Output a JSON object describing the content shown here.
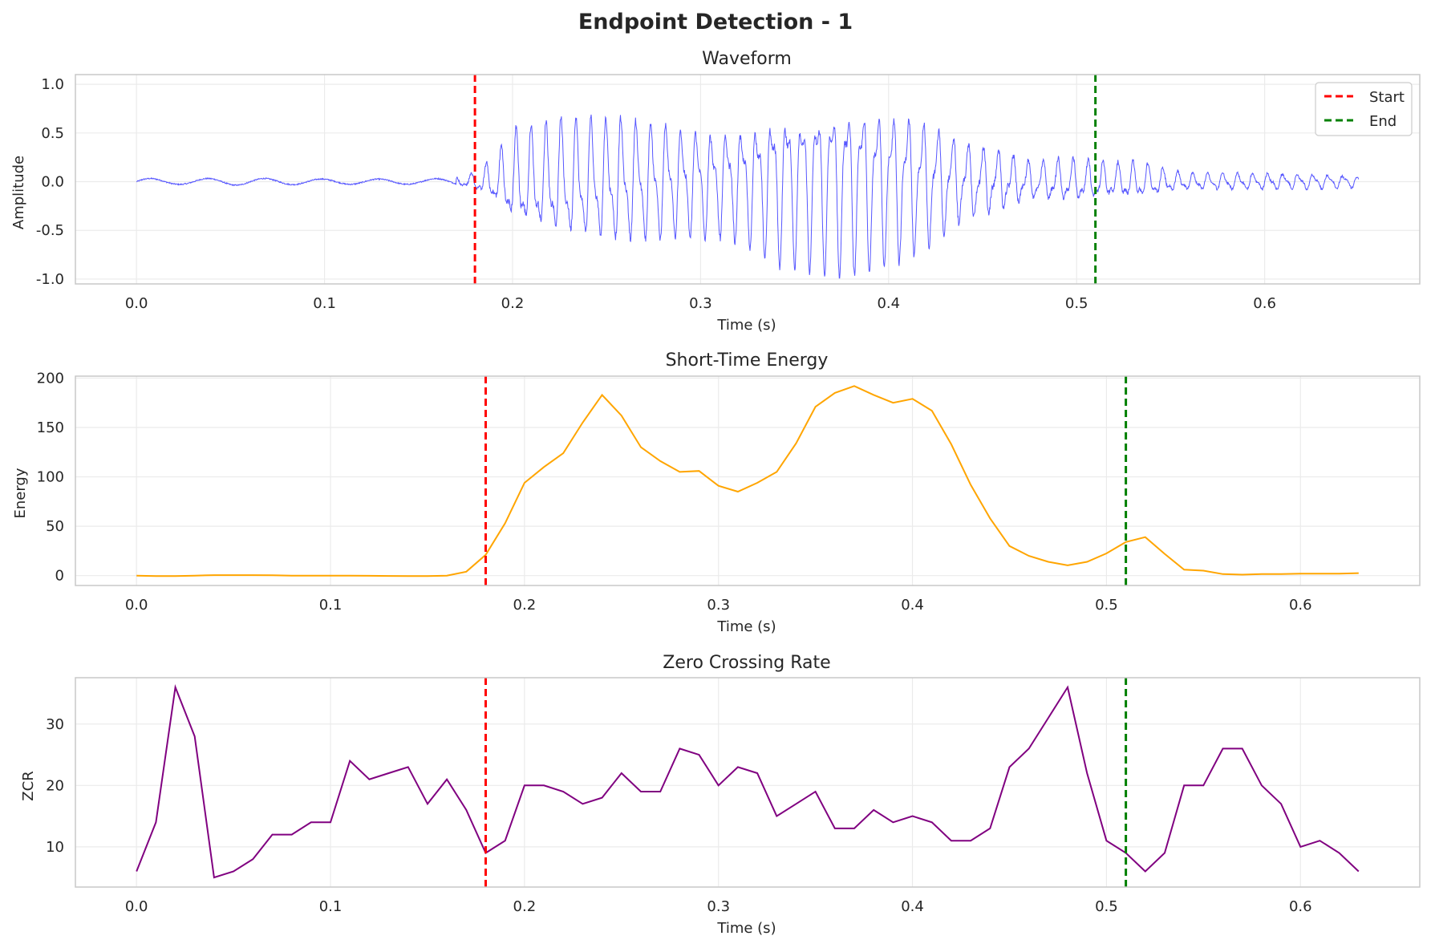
{
  "figure": {
    "title": "Endpoint Detection - 1"
  },
  "colors": {
    "start": "#ff0000",
    "end": "#008000",
    "waveform": "#4545ff",
    "energy": "#ffa500",
    "zcr": "#800080"
  },
  "legend": {
    "start_label": "Start",
    "end_label": "End",
    "placement": "upper right"
  },
  "chart_data": [
    {
      "type": "line",
      "title": "Waveform",
      "xlabel": "Time (s)",
      "ylabel": "Amplitude",
      "xlim": [
        -0.0325,
        0.6825
      ],
      "ylim": [
        -1.05,
        1.1
      ],
      "xticks": [
        "0.0",
        "0.1",
        "0.2",
        "0.3",
        "0.4",
        "0.5",
        "0.6"
      ],
      "yticks": [
        "-1.0",
        "-0.5",
        "0.0",
        "0.5",
        "1.0"
      ],
      "grid": true,
      "start_time": 0.18,
      "end_time": 0.51,
      "series": [
        {
          "envelope_points": {
            "t": [
              0.0,
              0.02,
              0.05,
              0.1,
              0.15,
              0.17,
              0.18,
              0.19,
              0.2,
              0.21,
              0.22,
              0.23,
              0.24,
              0.25,
              0.26,
              0.27,
              0.28,
              0.29,
              0.3,
              0.31,
              0.32,
              0.33,
              0.34,
              0.35,
              0.36,
              0.37,
              0.38,
              0.39,
              0.4,
              0.41,
              0.42,
              0.43,
              0.44,
              0.45,
              0.46,
              0.47,
              0.48,
              0.49,
              0.5,
              0.51,
              0.52,
              0.53,
              0.54,
              0.55,
              0.56,
              0.58,
              0.6,
              0.62,
              0.64,
              0.65
            ],
            "amp": [
              0.04,
              0.03,
              0.04,
              0.03,
              0.03,
              0.04,
              0.1,
              0.25,
              0.55,
              0.6,
              0.65,
              0.7,
              0.7,
              0.7,
              0.72,
              0.7,
              0.68,
              0.65,
              0.62,
              0.6,
              0.65,
              0.75,
              0.9,
              0.92,
              0.95,
              1.0,
              0.98,
              0.95,
              0.9,
              0.85,
              0.75,
              0.6,
              0.45,
              0.4,
              0.35,
              0.25,
              0.22,
              0.25,
              0.25,
              0.22,
              0.2,
              0.22,
              0.18,
              0.12,
              0.1,
              0.1,
              0.09,
              0.09,
              0.08,
              0.06
            ]
          }
        }
      ]
    },
    {
      "type": "line",
      "title": "Short-Time Energy",
      "xlabel": "Time (s)",
      "ylabel": "Energy",
      "xlim": [
        -0.0315,
        0.6615
      ],
      "ylim": [
        -10,
        202
      ],
      "xticks": [
        "0.0",
        "0.1",
        "0.2",
        "0.3",
        "0.4",
        "0.5",
        "0.6"
      ],
      "yticks": [
        "0",
        "50",
        "100",
        "150",
        "200"
      ],
      "grid": true,
      "start_time": 0.18,
      "end_time": 0.51,
      "x": [
        0.0,
        0.01,
        0.02,
        0.03,
        0.04,
        0.05,
        0.06,
        0.07,
        0.08,
        0.09,
        0.1,
        0.11,
        0.12,
        0.13,
        0.14,
        0.15,
        0.16,
        0.17,
        0.18,
        0.19,
        0.2,
        0.21,
        0.22,
        0.23,
        0.24,
        0.25,
        0.26,
        0.27,
        0.28,
        0.29,
        0.3,
        0.31,
        0.32,
        0.33,
        0.34,
        0.35,
        0.36,
        0.37,
        0.38,
        0.39,
        0.4,
        0.41,
        0.42,
        0.43,
        0.44,
        0.45,
        0.46,
        0.47,
        0.48,
        0.49,
        0.5,
        0.51,
        0.52,
        0.53,
        0.54,
        0.55,
        0.56,
        0.57,
        0.58,
        0.59,
        0.6,
        0.61,
        0.62,
        0.63
      ],
      "series": [
        {
          "values": [
            0.0,
            -0.5,
            -0.5,
            0.0,
            0.5,
            0.5,
            0.5,
            0.3,
            0.0,
            0.0,
            0.0,
            0.0,
            -0.2,
            -0.3,
            -0.5,
            -0.5,
            0.0,
            4.0,
            21.0,
            53.0,
            94.0,
            110.0,
            124.0,
            155.0,
            183.0,
            162.0,
            130.0,
            116.0,
            105.0,
            106.0,
            91.0,
            85.0,
            94.0,
            105.0,
            134.0,
            171.0,
            185.0,
            192.0,
            183.0,
            175.0,
            179.0,
            167.0,
            133.0,
            92.0,
            58.0,
            30.0,
            20.0,
            14.0,
            10.5,
            14.0,
            22.5,
            34.0,
            39.0,
            22.0,
            6.0,
            5.0,
            1.5,
            1.0,
            1.5,
            1.5,
            2.0,
            2.0,
            2.0,
            2.5
          ]
        }
      ]
    },
    {
      "type": "line",
      "title": "Zero Crossing Rate",
      "xlabel": "Time (s)",
      "ylabel": "ZCR",
      "xlim": [
        -0.0315,
        0.6615
      ],
      "ylim": [
        3.45,
        37.55
      ],
      "xticks": [
        "0.0",
        "0.1",
        "0.2",
        "0.3",
        "0.4",
        "0.5",
        "0.6"
      ],
      "yticks": [
        "10",
        "20",
        "30"
      ],
      "grid": true,
      "start_time": 0.18,
      "end_time": 0.51,
      "x": [
        0.0,
        0.01,
        0.02,
        0.03,
        0.04,
        0.05,
        0.06,
        0.07,
        0.08,
        0.09,
        0.1,
        0.11,
        0.12,
        0.13,
        0.14,
        0.15,
        0.16,
        0.17,
        0.18,
        0.19,
        0.2,
        0.21,
        0.22,
        0.23,
        0.24,
        0.25,
        0.26,
        0.27,
        0.28,
        0.29,
        0.3,
        0.31,
        0.32,
        0.33,
        0.34,
        0.35,
        0.36,
        0.37,
        0.38,
        0.39,
        0.4,
        0.41,
        0.42,
        0.43,
        0.44,
        0.45,
        0.46,
        0.47,
        0.48,
        0.49,
        0.5,
        0.51,
        0.52,
        0.53,
        0.54,
        0.55,
        0.56,
        0.57,
        0.58,
        0.59,
        0.6,
        0.61,
        0.62,
        0.63
      ],
      "series": [
        {
          "values": [
            6,
            14,
            36,
            28,
            5,
            6,
            8,
            12,
            12,
            14,
            14,
            24,
            21,
            22,
            23,
            17,
            21,
            16,
            9,
            11,
            20,
            20,
            19,
            17,
            18,
            22,
            19,
            19,
            26,
            25,
            20,
            23,
            22,
            15,
            17,
            19,
            13,
            13,
            16,
            14,
            15,
            14,
            11,
            11,
            13,
            23,
            26,
            31,
            36,
            22,
            11,
            9,
            6,
            9,
            20,
            20,
            26,
            26,
            20,
            17,
            10,
            11,
            9,
            6
          ]
        }
      ]
    }
  ]
}
